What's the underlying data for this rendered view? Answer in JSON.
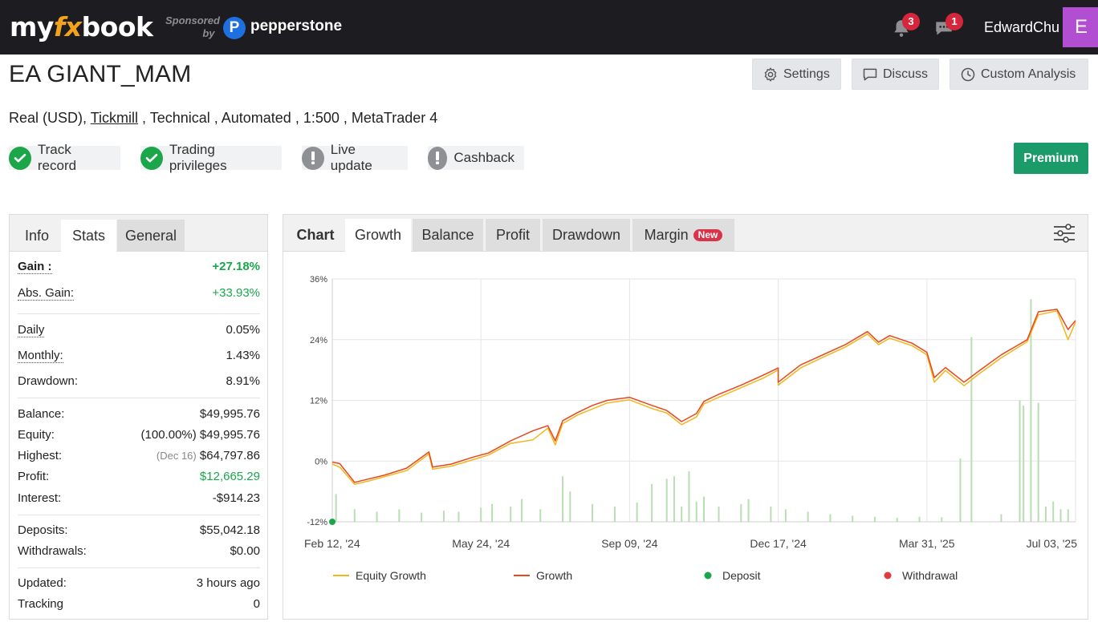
{
  "topbar": {
    "logo": {
      "part1": "my",
      "part2": "fx",
      "part3": "book"
    },
    "sponsored_line1": "Sponsored",
    "sponsored_line2": "by",
    "sponsor_name": "pepperstone",
    "sponsor_logo_letter": "P",
    "notifications_count": "3",
    "messages_count": "1",
    "username": "EdwardChu",
    "avatar_letter": "E"
  },
  "page": {
    "title": "EA GIANT_MAM",
    "subline": {
      "prefix": "Real (USD), ",
      "broker": "Tickmill",
      "suffix": " , Technical , Automated , 1:500 , MetaTrader 4"
    },
    "buttons": {
      "settings": "Settings",
      "discuss": "Discuss",
      "custom_analysis": "Custom Analysis"
    },
    "features": [
      {
        "label": "Track record",
        "status": "verified"
      },
      {
        "label": "Trading privileges",
        "status": "verified"
      },
      {
        "label": "Live update",
        "status": "unverified"
      },
      {
        "label": "Cashback",
        "status": "unverified"
      }
    ],
    "premium_label": "Premium"
  },
  "left_panel": {
    "tabs": [
      "Info",
      "Stats",
      "General"
    ],
    "active_tab": "Stats",
    "stats": {
      "gain": {
        "label": "Gain :",
        "value": "+27.18%"
      },
      "abs_gain": {
        "label": "Abs. Gain:",
        "value": "+33.93%"
      },
      "daily": {
        "label": "Daily",
        "value": "0.05%"
      },
      "monthly": {
        "label": "Monthly:",
        "value": "1.43%"
      },
      "drawdown": {
        "label": "Drawdown:",
        "value": "8.91%"
      },
      "balance": {
        "label": "Balance:",
        "value": "$49,995.76"
      },
      "equity": {
        "label": "Equity:",
        "prefix": "(100.00%)",
        "value": "$49,995.76"
      },
      "highest": {
        "label": "Highest:",
        "prefix": "(Dec 16)",
        "value": "$64,797.86"
      },
      "profit": {
        "label": "Profit:",
        "value": "$12,665.29"
      },
      "interest": {
        "label": "Interest:",
        "value": "-$914.23"
      },
      "deposits": {
        "label": "Deposits:",
        "value": "$55,042.18"
      },
      "withdrawals": {
        "label": "Withdrawals:",
        "value": "$0.00"
      },
      "updated": {
        "label": "Updated:",
        "value": "3 hours ago"
      },
      "tracking": {
        "label": "Tracking",
        "value": "0"
      }
    }
  },
  "chart_panel": {
    "tabs": [
      "Chart",
      "Growth",
      "Balance",
      "Profit",
      "Drawdown",
      "Margin"
    ],
    "active_tab": "Growth",
    "new_badge": "New"
  },
  "chart_data": {
    "type": "line",
    "y_ticks": [
      "36%",
      "24%",
      "12%",
      "0%",
      "-12%"
    ],
    "ylim": [
      -12,
      36
    ],
    "x_ticks": [
      "Feb 12, '24",
      "May 24, '24",
      "Sep 09, '24",
      "Dec 17, '24",
      "Mar 31, '25",
      "Jul 03, '25"
    ],
    "x_tick_positions": [
      0,
      0.2,
      0.4,
      0.6,
      0.8,
      1.0
    ],
    "legend": [
      {
        "name": "Equity Growth",
        "color": "#f3b61f",
        "kind": "line"
      },
      {
        "name": "Growth",
        "color": "#e8461b",
        "kind": "line"
      },
      {
        "name": "Deposit",
        "color": "#1aa64a",
        "kind": "dot"
      },
      {
        "name": "Withdrawal",
        "color": "#e23b3b",
        "kind": "dot"
      }
    ],
    "growth_series": {
      "x": [
        0,
        0.01,
        0.03,
        0.05,
        0.07,
        0.1,
        0.13,
        0.135,
        0.16,
        0.19,
        0.21,
        0.24,
        0.27,
        0.29,
        0.3,
        0.31,
        0.33,
        0.35,
        0.37,
        0.4,
        0.43,
        0.45,
        0.47,
        0.49,
        0.5,
        0.52,
        0.55,
        0.58,
        0.6,
        0.6,
        0.63,
        0.66,
        0.69,
        0.72,
        0.735,
        0.75,
        0.78,
        0.8,
        0.81,
        0.825,
        0.85,
        0.87,
        0.9,
        0.935,
        0.95,
        0.975,
        0.99,
        1.0
      ],
      "y": [
        -0.2,
        -0.5,
        -4.2,
        -3.5,
        -2.8,
        -1.4,
        1.8,
        -1.2,
        -0.6,
        0.8,
        1.6,
        4.0,
        6.0,
        7.0,
        4.0,
        8.0,
        9.6,
        11.0,
        12.0,
        12.6,
        11.0,
        10.0,
        7.8,
        9.4,
        11.8,
        13.2,
        15.0,
        17.0,
        18.4,
        15.6,
        19.0,
        21.0,
        23.0,
        25.6,
        23.5,
        24.8,
        23.3,
        21.5,
        16.5,
        18.5,
        15.6,
        17.8,
        21.0,
        24.0,
        29.5,
        30.0,
        26.0,
        27.8
      ],
      "color": "#e8461b"
    },
    "equity_series": {
      "x": [
        0,
        0.01,
        0.03,
        0.05,
        0.07,
        0.1,
        0.13,
        0.135,
        0.16,
        0.19,
        0.21,
        0.24,
        0.27,
        0.29,
        0.3,
        0.31,
        0.33,
        0.35,
        0.37,
        0.4,
        0.43,
        0.45,
        0.47,
        0.49,
        0.5,
        0.52,
        0.55,
        0.58,
        0.6,
        0.6,
        0.63,
        0.66,
        0.69,
        0.72,
        0.735,
        0.75,
        0.78,
        0.8,
        0.81,
        0.825,
        0.85,
        0.87,
        0.9,
        0.935,
        0.95,
        0.975,
        0.99,
        1.0
      ],
      "y": [
        -0.6,
        -1.2,
        -4.6,
        -3.9,
        -3.1,
        -1.9,
        1.4,
        -1.6,
        -1.0,
        0.3,
        1.2,
        3.5,
        4.2,
        6.5,
        3.2,
        7.4,
        9.1,
        10.3,
        11.5,
        12.1,
        10.4,
        9.5,
        7.2,
        8.7,
        11.3,
        12.6,
        14.5,
        16.4,
        18.0,
        15.0,
        18.4,
        20.5,
        22.5,
        25.1,
        23.0,
        24.3,
        22.8,
        21.0,
        15.6,
        17.9,
        14.9,
        17.2,
        20.4,
        23.6,
        28.9,
        29.7,
        24.0,
        27.5
      ],
      "color": "#f3b61f"
    },
    "deposit_bars": {
      "x": [
        0.005,
        0.03,
        0.06,
        0.09,
        0.12,
        0.15,
        0.17,
        0.2,
        0.215,
        0.24,
        0.255,
        0.28,
        0.31,
        0.32,
        0.35,
        0.38,
        0.41,
        0.43,
        0.45,
        0.46,
        0.47,
        0.48,
        0.49,
        0.5,
        0.52,
        0.55,
        0.56,
        0.59,
        0.61,
        0.64,
        0.67,
        0.7,
        0.73,
        0.76,
        0.79,
        0.82,
        0.845,
        0.86,
        0.9,
        0.925,
        0.93,
        0.94,
        0.95,
        0.96,
        0.97,
        0.98,
        0.99
      ],
      "y": [
        -6.5,
        -9.5,
        -10.0,
        -9.5,
        -10.2,
        -9.8,
        -10.0,
        -9.2,
        -8.5,
        -9.0,
        -7.5,
        -9.5,
        -3.0,
        -6.0,
        -8.5,
        -9.0,
        -8.2,
        -4.5,
        -3.5,
        -3.0,
        -9.0,
        -2.0,
        -8.0,
        -7.0,
        -9.0,
        -8.5,
        -7.5,
        -9.0,
        -9.5,
        -10.0,
        -10.5,
        -10.8,
        -11.0,
        -11.2,
        -11.0,
        -11.1,
        0.5,
        24.5,
        -10.5,
        12.0,
        11.0,
        32.0,
        11.5,
        -9.0,
        -8.0,
        -9.5,
        -9.5
      ],
      "color": "#b9deb3"
    },
    "deposit_points": [
      {
        "x": 0.0,
        "y": -12
      }
    ]
  }
}
